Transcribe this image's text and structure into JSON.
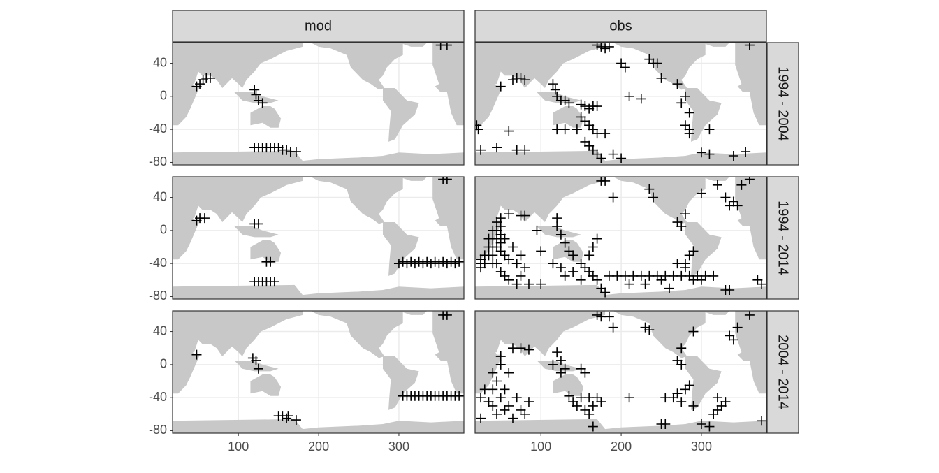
{
  "chart_data": {
    "type": "scatter",
    "marker": "+",
    "color": "#000000",
    "columns": [
      "mod",
      "obs"
    ],
    "rows": [
      {
        "label": "1994 - 2004",
        "panels": [
          {
            "x": [
              48,
              52,
              56,
              60,
              65,
              120,
              122,
              125,
              130,
              120,
              125,
              130,
              135,
              140,
              145,
              150,
              155,
              160,
              165,
              172,
              352,
              360
            ],
            "y": [
              12,
              15,
              20,
              22,
              22,
              8,
              2,
              -5,
              -8,
              -62,
              -62,
              -62,
              -62,
              -62,
              -62,
              -62,
              -65,
              -65,
              -67,
              -67,
              62,
              62
            ]
          },
          {
            "x": [
              65,
              70,
              75,
              80,
              50,
              115,
              118,
              120,
              125,
              130,
              135,
              150,
              155,
              160,
              165,
              170,
              150,
              155,
              160,
              165,
              170,
              155,
              160,
              165,
              170,
              175,
              200,
              175,
              180,
              185,
              170,
              200,
              205,
              235,
              240,
              245,
              225,
              210,
              250,
              270,
              280,
              275,
              285,
              280,
              285,
              285,
              310,
              300,
              310,
              340,
              355,
              20,
              22,
              25,
              45,
              60,
              70,
              80,
              120,
              130,
              145,
              180,
              360,
              190
            ],
            "y": [
              20,
              22,
              22,
              20,
              12,
              15,
              8,
              0,
              -5,
              -5,
              -8,
              -10,
              -12,
              -15,
              -12,
              -12,
              -25,
              -30,
              -35,
              -40,
              -45,
              -55,
              -60,
              -65,
              -70,
              -75,
              -75,
              60,
              58,
              60,
              62,
              40,
              35,
              45,
              40,
              40,
              -3,
              0,
              22,
              15,
              0,
              -8,
              -20,
              -35,
              -40,
              -45,
              -40,
              -68,
              -70,
              -72,
              -67,
              -35,
              -40,
              -65,
              -62,
              -42,
              -65,
              -65,
              -40,
              -40,
              -40,
              -45,
              62,
              -70
            ]
          }
        ]
      },
      {
        "label": "1994 - 2014",
        "panels": [
          {
            "x": [
              48,
              52,
              58,
              120,
              125,
              135,
              140,
              120,
              125,
              130,
              135,
              140,
              145,
              300,
              305,
              310,
              315,
              320,
              325,
              330,
              335,
              340,
              345,
              350,
              355,
              360,
              365,
              370,
              375,
              355,
              360
            ],
            "y": [
              12,
              15,
              15,
              8,
              8,
              -38,
              -38,
              -62,
              -62,
              -62,
              -62,
              -62,
              -62,
              -40,
              -38,
              -40,
              -38,
              -40,
              -38,
              -40,
              -38,
              -40,
              -38,
              -40,
              -38,
              -40,
              -38,
              -40,
              -38,
              62,
              62
            ]
          },
          {
            "x": [
              25,
              25,
              25,
              30,
              30,
              35,
              35,
              35,
              40,
              40,
              40,
              40,
              40,
              45,
              45,
              45,
              45,
              45,
              50,
              50,
              50,
              50,
              50,
              50,
              55,
              55,
              55,
              60,
              60,
              60,
              65,
              70,
              70,
              75,
              75,
              80,
              85,
              80,
              75,
              100,
              100,
              95,
              120,
              120,
              125,
              130,
              135,
              140,
              115,
              125,
              130,
              140,
              150,
              150,
              155,
              160,
              165,
              170,
              175,
              180,
              160,
              165,
              170,
              175,
              180,
              190,
              235,
              240,
              185,
              195,
              205,
              215,
              225,
              235,
              245,
              255,
              265,
              275,
              285,
              295,
              305,
              315,
              210,
              230,
              250,
              260,
              270,
              280,
              285,
              290,
              275,
              270,
              280,
              290,
              300,
              330,
              335,
              370,
              375,
              280,
              300,
              320,
              330,
              335,
              340,
              345,
              350,
              360
            ],
            "y": [
              -35,
              -40,
              -45,
              -30,
              -40,
              -10,
              -20,
              -30,
              0,
              -10,
              -20,
              -30,
              -40,
              10,
              0,
              -10,
              -20,
              -40,
              15,
              5,
              -5,
              -15,
              -25,
              -50,
              -10,
              -30,
              -55,
              20,
              -35,
              -60,
              -20,
              -40,
              -65,
              -30,
              -55,
              -45,
              -65,
              18,
              18,
              -65,
              -25,
              0,
              15,
              5,
              -5,
              -15,
              -25,
              -30,
              -40,
              -45,
              -55,
              -50,
              -40,
              -60,
              -45,
              -50,
              -55,
              -60,
              -70,
              -75,
              -30,
              -20,
              -10,
              60,
              60,
              40,
              50,
              40,
              -55,
              -55,
              -55,
              -55,
              -55,
              -55,
              -55,
              -55,
              -55,
              -55,
              -55,
              -55,
              -55,
              -55,
              -65,
              -65,
              -60,
              -70,
              -40,
              -40,
              -30,
              -25,
              5,
              10,
              20,
              -60,
              -60,
              -72,
              -72,
              -60,
              -65,
              -45,
              45,
              55,
              40,
              30,
              35,
              30,
              55,
              62
            ]
          }
        ]
      },
      {
        "label": "2004 - 2014",
        "panels": [
          {
            "x": [
              48,
              118,
              122,
              125,
              150,
              155,
              160,
              162,
              172,
              355,
              360,
              305,
              310,
              315,
              320,
              325,
              330,
              335,
              340,
              345,
              350,
              355,
              360,
              365,
              370,
              375
            ],
            "y": [
              12,
              8,
              5,
              -5,
              -62,
              -62,
              -65,
              -62,
              -67,
              60,
              60,
              -38,
              -38,
              -38,
              -38,
              -38,
              -38,
              -38,
              -38,
              -38,
              -38,
              -38,
              -38,
              -38,
              -38,
              -38
            ]
          },
          {
            "x": [
              25,
              25,
              30,
              35,
              40,
              40,
              40,
              45,
              45,
              50,
              50,
              50,
              55,
              55,
              60,
              60,
              65,
              65,
              70,
              75,
              80,
              85,
              75,
              85,
              120,
              115,
              125,
              125,
              130,
              150,
              155,
              135,
              140,
              145,
              150,
              155,
              160,
              165,
              170,
              175,
              160,
              165,
              170,
              175,
              185,
              190,
              230,
              235,
              250,
              255,
              210,
              255,
              265,
              270,
              275,
              280,
              285,
              270,
              275,
              275,
              290,
              290,
              300,
              310,
              315,
              320,
              325,
              330,
              320,
              335,
              340,
              345,
              360,
              375
            ],
            "y": [
              -40,
              -65,
              -30,
              -45,
              -10,
              -30,
              -50,
              -20,
              -60,
              0,
              10,
              -40,
              -30,
              -55,
              -10,
              -50,
              20,
              -65,
              -40,
              -55,
              -60,
              -45,
              20,
              18,
              15,
              0,
              5,
              -10,
              -5,
              -5,
              -10,
              -38,
              -45,
              -50,
              -40,
              -55,
              -40,
              -50,
              -40,
              -45,
              -60,
              -75,
              60,
              58,
              58,
              45,
              45,
              42,
              -72,
              -72,
              -40,
              -40,
              -40,
              -35,
              -45,
              -30,
              -25,
              5,
              0,
              20,
              40,
              -50,
              -72,
              -75,
              -60,
              -55,
              -50,
              -45,
              -40,
              35,
              30,
              45,
              60,
              -68
            ]
          }
        ]
      }
    ],
    "xlim": [
      18,
      381
    ],
    "ylim": [
      -83,
      65
    ],
    "xticks": [
      100,
      200,
      300
    ],
    "yticks": [
      -80,
      -40,
      0,
      40
    ],
    "grid": true
  }
}
